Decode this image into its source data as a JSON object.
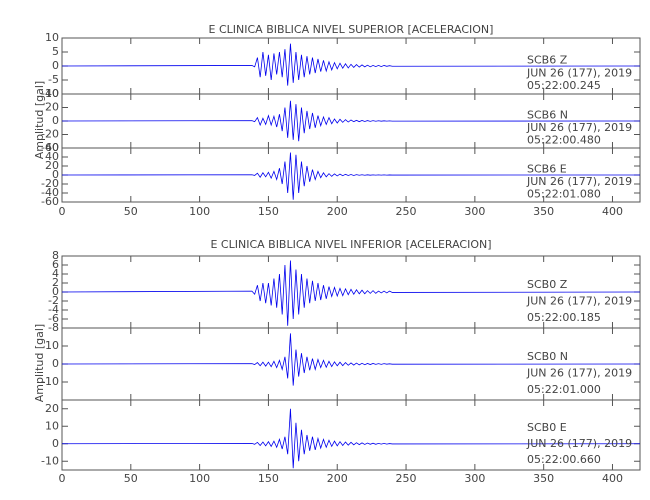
{
  "chart_data": [
    {
      "type": "line",
      "title": "E CLINICA BIBLICA NIVEL SUPERIOR [ACELERACION]",
      "ylabel": "Amplitud [gal]",
      "color": "#0000ee",
      "xlim": [
        0,
        420
      ],
      "xticks": [
        0,
        50,
        100,
        150,
        200,
        250,
        300,
        350,
        400
      ],
      "x": [
        0,
        138,
        140,
        142,
        144,
        146,
        148,
        150,
        152,
        154,
        156,
        158,
        160,
        162,
        164,
        166,
        168,
        170,
        172,
        174,
        176,
        178,
        180,
        182,
        184,
        186,
        188,
        190,
        192,
        194,
        196,
        198,
        200,
        202,
        204,
        206,
        208,
        210,
        212,
        214,
        216,
        218,
        220,
        222,
        224,
        226,
        228,
        230,
        232,
        234,
        236,
        238,
        240,
        420
      ],
      "traces": [
        {
          "station": "SCB6   Z",
          "date": "JUN 26 (177), 2019",
          "time": "05:22:00.245",
          "ylim": [
            -10,
            10
          ],
          "yticks": [
            -10,
            -5,
            0,
            5,
            10
          ],
          "values": [
            0,
            0.2,
            -0.3,
            3,
            -4,
            5,
            -3.5,
            4,
            -5,
            4.5,
            -3,
            5,
            -4,
            6,
            -7,
            8,
            -6,
            5,
            -5,
            4,
            -4,
            3.5,
            -3,
            3,
            -2.5,
            2.5,
            -2,
            2,
            -1.8,
            1.5,
            -1.4,
            1.2,
            -1,
            1,
            -0.8,
            0.8,
            -0.7,
            0.6,
            -0.5,
            0.5,
            -0.4,
            0.4,
            -0.3,
            0.3,
            -0.3,
            0.2,
            -0.2,
            0.2,
            -0.2,
            0.2,
            -0.1,
            0.1,
            -0.1,
            0
          ]
        },
        {
          "station": "SCB6   N",
          "date": "JUN 26 (177), 2019",
          "time": "05:22:00.480",
          "ylim": [
            -40,
            40
          ],
          "yticks": [
            -40,
            -20,
            0,
            20,
            40
          ],
          "values": [
            0,
            0.5,
            -1,
            5,
            -6,
            4,
            -5,
            8,
            -6,
            7,
            -9,
            10,
            -15,
            20,
            -25,
            30,
            -28,
            25,
            -30,
            20,
            -18,
            15,
            -12,
            12,
            -10,
            8,
            -7,
            6,
            -5,
            5,
            -4,
            3,
            -3,
            2.5,
            -2,
            2,
            -1.5,
            1.5,
            -1,
            1,
            -1,
            0.8,
            -0.7,
            0.6,
            -0.5,
            0.5,
            -0.4,
            0.4,
            -0.3,
            0.3,
            -0.2,
            0.2,
            -0.2,
            0
          ]
        },
        {
          "station": "SCB6   E",
          "date": "JUN 26 (177), 2019",
          "time": "05:22:01.080",
          "ylim": [
            -60,
            60
          ],
          "yticks": [
            -60,
            -40,
            -20,
            0,
            20,
            40,
            60
          ],
          "values": [
            0,
            0.5,
            -1,
            4,
            -5,
            5,
            -4,
            6,
            -7,
            8,
            -10,
            15,
            -20,
            30,
            -40,
            50,
            -55,
            45,
            -40,
            30,
            -25,
            20,
            -15,
            12,
            -10,
            8,
            -6,
            5,
            -4,
            3,
            -3,
            2.5,
            -2,
            2,
            -1.5,
            1.5,
            -1,
            1,
            -1,
            0.8,
            -0.6,
            0.5,
            -0.5,
            0.4,
            -0.4,
            0.3,
            -0.3,
            0.3,
            -0.2,
            0.2,
            -0.2,
            0.1,
            -0.1,
            0
          ]
        }
      ]
    },
    {
      "type": "line",
      "title": "E CLINICA BIBLICA NIVEL INFERIOR [ACELERACION]",
      "ylabel": "Amplitud [gal]",
      "color": "#0000ee",
      "xlim": [
        0,
        420
      ],
      "xticks": [
        0,
        50,
        100,
        150,
        200,
        250,
        300,
        350,
        400
      ],
      "x": [
        0,
        138,
        140,
        142,
        144,
        146,
        148,
        150,
        152,
        154,
        156,
        158,
        160,
        162,
        164,
        166,
        168,
        170,
        172,
        174,
        176,
        178,
        180,
        182,
        184,
        186,
        188,
        190,
        192,
        194,
        196,
        198,
        200,
        202,
        204,
        206,
        208,
        210,
        212,
        214,
        216,
        218,
        220,
        222,
        224,
        226,
        228,
        230,
        232,
        234,
        236,
        238,
        240,
        420
      ],
      "traces": [
        {
          "station": "SCB0   Z",
          "date": "JUN 26 (177), 2019",
          "time": "05:22:00.185",
          "ylim": [
            -8,
            8
          ],
          "yticks": [
            -8,
            -6,
            -4,
            -2,
            0,
            2,
            4,
            6,
            8
          ],
          "values": [
            0,
            0.2,
            -0.5,
            1.5,
            -2,
            2,
            -2.5,
            2,
            -3,
            3,
            -3.5,
            4,
            -5,
            6,
            -7.5,
            7,
            -6,
            5,
            -5,
            4,
            -3.5,
            3,
            -2.5,
            2.5,
            -2,
            2,
            -1.8,
            1.5,
            -1.5,
            1.2,
            -1,
            1,
            -0.9,
            0.8,
            -0.8,
            0.7,
            -0.6,
            0.6,
            -0.5,
            0.5,
            -0.4,
            0.4,
            -0.4,
            0.3,
            -0.3,
            0.3,
            -0.3,
            0.2,
            -0.2,
            0.2,
            -0.2,
            0.2,
            -0.1,
            0
          ]
        },
        {
          "station": "SCB0   N",
          "date": "JUN 26 (177), 2019",
          "time": "05:22:01.000",
          "ylim": [
            -20,
            20
          ],
          "yticks": [
            -10,
            0,
            10
          ],
          "values": [
            0,
            0.2,
            -0.3,
            0.8,
            -1,
            1,
            -1.2,
            1,
            -1.5,
            1.5,
            -2,
            2,
            -3,
            4,
            -8,
            17,
            -12,
            8,
            -7,
            6,
            -5,
            4,
            -3.5,
            3,
            -3,
            2.5,
            -2,
            2,
            -1.8,
            1.5,
            -1.4,
            1.2,
            -1,
            1,
            -0.9,
            0.8,
            -0.7,
            0.6,
            -0.6,
            0.5,
            -0.5,
            0.4,
            -0.4,
            0.3,
            -0.3,
            0.3,
            -0.2,
            0.2,
            -0.2,
            0.2,
            -0.1,
            0.1,
            -0.1,
            0
          ]
        },
        {
          "station": "SCB0   E",
          "date": "JUN 26 (177), 2019",
          "time": "05:22:00.660",
          "ylim": [
            -15,
            25
          ],
          "yticks": [
            -10,
            0,
            10,
            20
          ],
          "values": [
            0,
            0.2,
            -0.3,
            0.8,
            -1,
            1,
            -1.2,
            1.2,
            -1.5,
            1.5,
            -2,
            2.5,
            -3,
            4,
            -6,
            20,
            -14,
            12,
            -10,
            8,
            -6,
            5,
            -4,
            4,
            -3.5,
            3,
            -2.5,
            2.5,
            -2,
            2,
            -1.5,
            1.5,
            -1.2,
            1.2,
            -1,
            1,
            -0.8,
            0.8,
            -0.6,
            0.6,
            -0.5,
            0.5,
            -0.4,
            0.4,
            -0.3,
            0.3,
            -0.3,
            0.2,
            -0.2,
            0.2,
            -0.2,
            0.1,
            -0.1,
            0
          ]
        }
      ]
    }
  ]
}
